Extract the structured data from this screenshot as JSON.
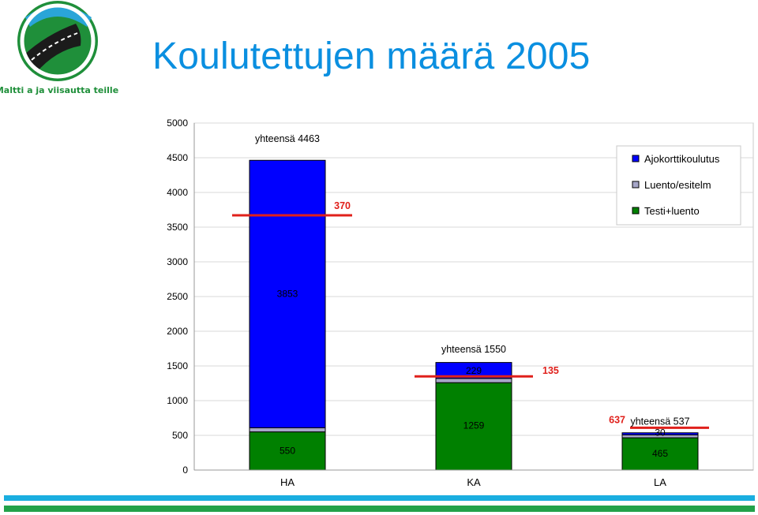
{
  "title": "Koulutettujen määrä 2005",
  "logo": {
    "text": "Maltti a ja viisautta teille",
    "colors": [
      "#1f8f3a",
      "#2aa5d8",
      "#1b1b1b"
    ]
  },
  "footer": {
    "colors": [
      "#1aaee0",
      "#22a24a"
    ]
  },
  "chart_data": {
    "type": "bar",
    "stacked": true,
    "categories": [
      "HA",
      "KA",
      "LA"
    ],
    "ylim": [
      0,
      5000
    ],
    "yticks": [
      0,
      500,
      1000,
      1500,
      2000,
      2500,
      3000,
      3500,
      4000,
      4500,
      5000
    ],
    "series": [
      {
        "name": "Testi+luento",
        "color": "#008000",
        "values": [
          550,
          1259,
          465
        ]
      },
      {
        "name": "Luento/esitelm",
        "color": "#a6a6c8",
        "values": [
          60,
          62,
          42
        ]
      },
      {
        "name": "Ajokorttikoulutus",
        "color": "#0000ff",
        "values": [
          3853,
          229,
          30
        ]
      }
    ],
    "legend_order": [
      "Ajokorttikoulutus",
      "Luento/esitelm",
      "Testi+luento"
    ],
    "legend_position": "top-right",
    "data_labels": [
      {
        "text": "550",
        "category": "HA",
        "y": 280
      },
      {
        "text": "3853",
        "category": "HA",
        "y": 2540
      },
      {
        "text": "1259",
        "category": "KA",
        "y": 640
      },
      {
        "text": "229",
        "category": "KA",
        "y": 1430
      },
      {
        "text": "465",
        "category": "LA",
        "y": 240
      },
      {
        "text": "30",
        "category": "LA",
        "y": 540
      }
    ],
    "totals": [
      {
        "text": "yhteensä 4463",
        "category": "HA",
        "y": 4770
      },
      {
        "text": "yhteensä 1550",
        "category": "KA",
        "y": 1740
      },
      {
        "text": "yhteensä 537",
        "category": "LA",
        "y": 700
      }
    ],
    "reference_lines": [
      {
        "category": "HA",
        "value": 3670,
        "label": "370"
      },
      {
        "category": "KA",
        "value": 1350,
        "label": "135"
      },
      {
        "category": "LA",
        "value": 610,
        "label": "637"
      }
    ],
    "reference_color": "#e0201b",
    "grid": true
  }
}
